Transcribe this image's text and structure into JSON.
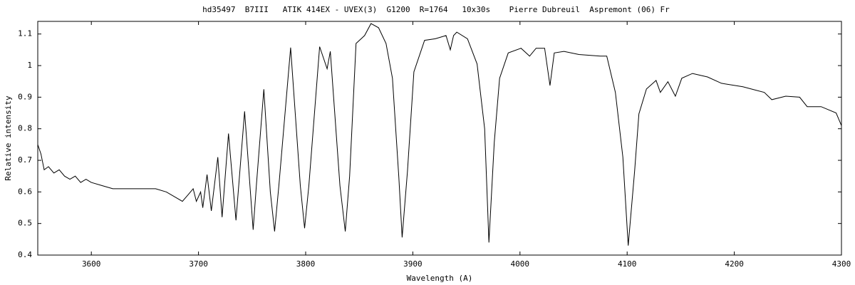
{
  "chart_data": {
    "type": "line",
    "title": "hd35497  B7III   ATIK 414EX - UVEX(3)  G1200  R=1764   10x30s    Pierre Dubreuil  Aspremont (06) Fr",
    "xlabel": "Wavelength (A)",
    "ylabel": "Relative intensity",
    "xlim": [
      3550,
      4300
    ],
    "ylim": [
      0.4,
      1.14
    ],
    "xticks": [
      3600,
      3700,
      3800,
      3900,
      4000,
      4100,
      4200,
      4300
    ],
    "yticks": [
      0.4,
      0.5,
      0.6,
      0.7,
      0.8,
      0.9,
      1,
      1.1
    ],
    "series": [
      {
        "color": "#000000",
        "x": [
          3550,
          3553,
          3556,
          3560,
          3565,
          3570,
          3575,
          3580,
          3585,
          3590,
          3595,
          3600,
          3610,
          3620,
          3630,
          3640,
          3650,
          3660,
          3670,
          3680,
          3685,
          3690,
          3695,
          3698,
          3702,
          3704,
          3708,
          3712,
          3718,
          3722,
          3728,
          3735,
          3743,
          3748,
          3751,
          3754,
          3761,
          3767,
          3771,
          3775,
          3786,
          3795,
          3799,
          3803,
          3813,
          3820,
          3823,
          3832,
          3837,
          3841,
          3847,
          3855,
          3861,
          3868,
          3875,
          3881,
          3887,
          3890,
          3895,
          3901,
          3911,
          3921,
          3931,
          3935,
          3938,
          3941,
          3951,
          3960,
          3967,
          3971,
          3976,
          3981,
          3989,
          4001,
          4009,
          4015,
          4023,
          4028,
          4032,
          4041,
          4055,
          4075,
          4081,
          4089,
          4096,
          4101,
          4107,
          4111,
          4118,
          4127,
          4131,
          4138,
          4145,
          4151,
          4161,
          4175,
          4188,
          4208,
          4228,
          4235,
          4248,
          4261,
          4268,
          4281,
          4295,
          4300
        ],
        "values": [
          0.75,
          0.72,
          0.67,
          0.68,
          0.66,
          0.67,
          0.65,
          0.64,
          0.65,
          0.63,
          0.64,
          0.63,
          0.62,
          0.61,
          0.61,
          0.61,
          0.61,
          0.61,
          0.6,
          0.58,
          0.57,
          0.59,
          0.61,
          0.57,
          0.6,
          0.55,
          0.655,
          0.54,
          0.71,
          0.52,
          0.785,
          0.51,
          0.855,
          0.62,
          0.48,
          0.62,
          0.925,
          0.6,
          0.475,
          0.62,
          1.057,
          0.62,
          0.485,
          0.62,
          1.06,
          0.99,
          1.045,
          0.62,
          0.475,
          0.65,
          1.07,
          1.095,
          1.133,
          1.12,
          1.07,
          0.96,
          0.645,
          0.456,
          0.666,
          0.98,
          1.08,
          1.085,
          1.095,
          1.05,
          1.095,
          1.106,
          1.085,
          1.005,
          0.8,
          0.44,
          0.757,
          0.96,
          1.04,
          1.055,
          1.03,
          1.055,
          1.055,
          0.937,
          1.04,
          1.045,
          1.035,
          1.03,
          1.03,
          0.915,
          0.71,
          0.43,
          0.666,
          0.847,
          0.926,
          0.953,
          0.915,
          0.949,
          0.903,
          0.96,
          0.975,
          0.964,
          0.944,
          0.933,
          0.915,
          0.892,
          0.903,
          0.9,
          0.87,
          0.87,
          0.85,
          0.81
        ]
      }
    ]
  }
}
